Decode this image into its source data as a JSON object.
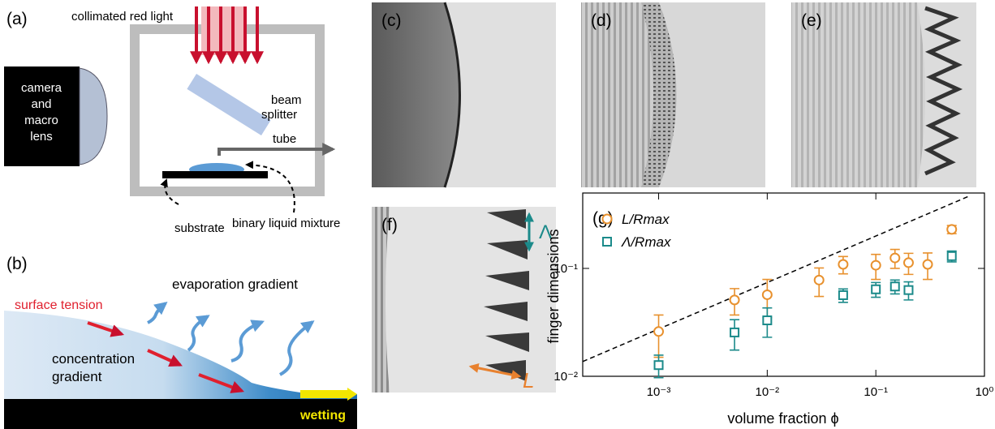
{
  "panels": {
    "a": {
      "label": "(a)",
      "light": "collimated red light",
      "camera": [
        "camera",
        "and",
        "macro",
        "lens"
      ],
      "splitter": [
        "beam",
        "splitter"
      ],
      "tube": "tube",
      "substrate": "substrate",
      "mixture": "binary liquid mixture"
    },
    "b": {
      "label": "(b)",
      "tension": "surface tension",
      "evaporation": "evaporation gradient",
      "concentration": [
        "concentration",
        "gradient"
      ],
      "wetting": "wetting"
    },
    "c": {
      "label": "(c)"
    },
    "d": {
      "label": "(d)"
    },
    "e": {
      "label": "(e)"
    },
    "f": {
      "label": "(f)",
      "spacing": "Λ",
      "length": "L"
    }
  },
  "chart_data": {
    "type": "scatter",
    "label": "(g)",
    "xlabel": "volume fraction ϕ",
    "ylabel": "finger dimensions",
    "log_x": true,
    "log_y": true,
    "legend": "upper left",
    "xlim": [
      0.0002,
      1
    ],
    "ylim": [
      0.01,
      0.5
    ],
    "xticks": [
      {
        "value": 0.001,
        "label": "10⁻³"
      },
      {
        "value": 0.01,
        "label": "10⁻²"
      },
      {
        "value": 0.1,
        "label": "10⁻¹"
      },
      {
        "value": 1,
        "label": "10⁰"
      }
    ],
    "yticks": [
      {
        "value": 0.01,
        "label": "10⁻²"
      },
      {
        "value": 0.1,
        "label": "10⁻¹"
      }
    ],
    "series": [
      {
        "name": "L/Rmax",
        "color": "#e8912e",
        "marker": "circle",
        "x": [
          0.001,
          0.005,
          0.01,
          0.03,
          0.05,
          0.1,
          0.15,
          0.2,
          0.3,
          0.5
        ],
        "values": [
          0.026,
          0.051,
          0.057,
          0.078,
          0.109,
          0.107,
          0.125,
          0.113,
          0.109,
          0.23
        ],
        "errors": [
          0.011,
          0.014,
          0.022,
          0.023,
          0.02,
          0.028,
          0.025,
          0.025,
          0.03,
          0.02
        ]
      },
      {
        "name": "Λ/Rmax",
        "color": "#1b8a8a",
        "marker": "square",
        "x": [
          0.001,
          0.005,
          0.01,
          0.05,
          0.1,
          0.15,
          0.2,
          0.5
        ],
        "values": [
          0.0127,
          0.0255,
          0.033,
          0.0565,
          0.064,
          0.068,
          0.063,
          0.13
        ],
        "errors": [
          0.003,
          0.008,
          0.01,
          0.008,
          0.01,
          0.01,
          0.012,
          0.015
        ]
      }
    ],
    "fit_line": {
      "x": [
        0.0002,
        0.73
      ],
      "y": [
        0.0137,
        0.47
      ]
    }
  }
}
